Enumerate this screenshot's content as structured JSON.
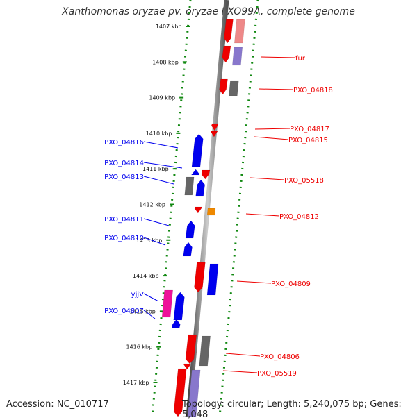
{
  "title": "Xanthomonas oryzae pv. oryzae PXO99A, complete genome",
  "footer": {
    "accession": "Accession: NC_010717",
    "topology": "Topology: circular; Length: 5,240,075 bp; Genes: 5,048"
  },
  "ticks": [
    "1407 kbp",
    "1408 kbp",
    "1409 kbp",
    "1410 kbp",
    "1411 kbp",
    "1412 kbp",
    "1413 kbp",
    "1414 kbp",
    "1415 kbp",
    "1416 kbp",
    "1417 kbp"
  ],
  "colors": {
    "forward": "#0000ee",
    "reverse": "#ee0000",
    "grey": "#666666",
    "orange": "#ee8800",
    "magenta": "#ee1199",
    "pink": "#ee8888",
    "lavender": "#8877cc",
    "guide": "#118811"
  },
  "left_labels": [
    "PXO_04816",
    "PXO_04814",
    "PXO_04813",
    "PXO_04811",
    "PXO_04810",
    "yjjV",
    "PXO_04807"
  ],
  "right_labels": [
    "fur",
    "PXO_04818",
    "PXO_04817",
    "PXO_04815",
    "PXO_05518",
    "PXO_04812",
    "PXO_04809",
    "PXO_04806",
    "PXO_05519"
  ]
}
